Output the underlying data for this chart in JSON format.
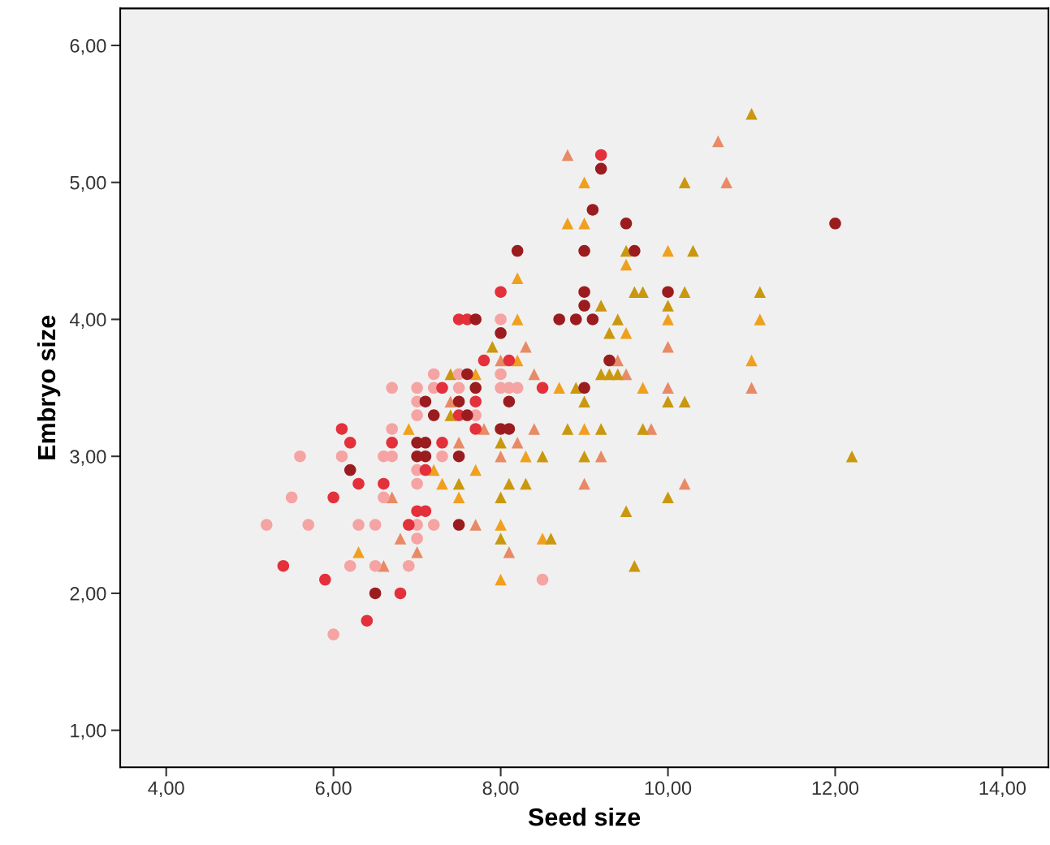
{
  "chart_data": {
    "type": "scatter",
    "xlabel": "Seed size",
    "ylabel": "Embryo size",
    "xlim": [
      3.45,
      14.55
    ],
    "ylim": [
      0.73,
      6.27
    ],
    "xticks": [
      {
        "value": 4,
        "label": "4,00"
      },
      {
        "value": 6,
        "label": "6,00"
      },
      {
        "value": 8,
        "label": "8,00"
      },
      {
        "value": 10,
        "label": "10,00"
      },
      {
        "value": 12,
        "label": "12,00"
      },
      {
        "value": 14,
        "label": "14,00"
      }
    ],
    "yticks": [
      {
        "value": 1,
        "label": "1,00"
      },
      {
        "value": 2,
        "label": "2,00"
      },
      {
        "value": 3,
        "label": "3,00"
      },
      {
        "value": 4,
        "label": "4,00"
      },
      {
        "value": 5,
        "label": "5,00"
      },
      {
        "value": 6,
        "label": "6,00"
      }
    ],
    "series": [
      {
        "color": "#e88a66",
        "marker": "triangle",
        "x": [
          8.8,
          10.6,
          10.7,
          8.3,
          10.0,
          8.0,
          9.4,
          8.4,
          9.5,
          10.0,
          11.0,
          7.4,
          7.8,
          8.4,
          9.8,
          7.5,
          8.2,
          8.0,
          9.2,
          9.0,
          10.2,
          6.7,
          7.7,
          6.8,
          7.0,
          8.1,
          6.6
        ],
        "values": [
          5.2,
          5.3,
          5.0,
          3.8,
          3.8,
          3.7,
          3.7,
          3.6,
          3.6,
          3.5,
          3.5,
          3.4,
          3.2,
          3.2,
          3.2,
          3.1,
          3.1,
          3.0,
          3.0,
          2.8,
          2.8,
          2.7,
          2.5,
          2.4,
          2.3,
          2.3,
          2.2
        ]
      },
      {
        "color": "#f0a01e",
        "marker": "triangle",
        "x": [
          9.0,
          8.8,
          9.0,
          10.0,
          9.5,
          8.2,
          8.2,
          10.0,
          11.1,
          9.5,
          8.2,
          11.0,
          7.7,
          8.7,
          9.7,
          9.0,
          6.9,
          8.3,
          7.2,
          7.7,
          7.3,
          7.5,
          8.0,
          8.5,
          6.3,
          8.0
        ],
        "values": [
          5.0,
          4.7,
          4.7,
          4.5,
          4.4,
          4.3,
          4.0,
          4.0,
          4.0,
          3.9,
          3.7,
          3.7,
          3.6,
          3.5,
          3.5,
          3.2,
          3.2,
          3.0,
          2.9,
          2.9,
          2.8,
          2.7,
          2.5,
          2.4,
          2.3,
          2.1
        ]
      },
      {
        "color": "#c9980f",
        "marker": "triangle",
        "x": [
          11.0,
          10.2,
          9.5,
          10.3,
          9.6,
          9.7,
          10.2,
          11.1,
          9.2,
          10.0,
          9.4,
          9.3,
          7.9,
          9.2,
          9.3,
          9.4,
          7.4,
          8.9,
          9.0,
          10.0,
          10.2,
          7.4,
          8.8,
          9.2,
          9.7,
          8.0,
          8.5,
          9.0,
          12.2,
          7.5,
          8.1,
          8.3,
          8.0,
          10.0,
          9.5,
          8.0,
          8.6,
          9.6
        ],
        "values": [
          5.5,
          5.0,
          4.5,
          4.5,
          4.2,
          4.2,
          4.2,
          4.2,
          4.1,
          4.1,
          4.0,
          3.9,
          3.8,
          3.6,
          3.6,
          3.6,
          3.6,
          3.5,
          3.4,
          3.4,
          3.4,
          3.3,
          3.2,
          3.2,
          3.2,
          3.1,
          3.0,
          3.0,
          3.0,
          2.8,
          2.8,
          2.8,
          2.7,
          2.7,
          2.6,
          2.4,
          2.4,
          2.2
        ]
      },
      {
        "color": "#f5a3a3",
        "marker": "circle",
        "x": [
          8.0,
          7.2,
          7.5,
          8.0,
          6.7,
          7.0,
          7.2,
          7.5,
          8.0,
          8.1,
          8.2,
          7.0,
          7.0,
          7.7,
          6.7,
          5.6,
          6.1,
          6.6,
          6.7,
          7.3,
          7.0,
          7.0,
          5.5,
          6.6,
          5.2,
          5.7,
          6.3,
          6.5,
          7.0,
          7.2,
          7.0,
          6.2,
          6.5,
          6.9,
          8.5,
          6.0
        ],
        "values": [
          4.0,
          3.6,
          3.6,
          3.6,
          3.5,
          3.5,
          3.5,
          3.5,
          3.5,
          3.5,
          3.5,
          3.4,
          3.3,
          3.3,
          3.2,
          3.0,
          3.0,
          3.0,
          3.0,
          3.0,
          2.9,
          2.8,
          2.7,
          2.7,
          2.5,
          2.5,
          2.5,
          2.5,
          2.5,
          2.5,
          2.4,
          2.2,
          2.2,
          2.2,
          2.1,
          1.7
        ]
      },
      {
        "color": "#e3303b",
        "marker": "circle",
        "x": [
          9.2,
          8.0,
          7.5,
          7.6,
          7.8,
          8.1,
          7.3,
          8.5,
          7.7,
          7.5,
          6.1,
          7.7,
          6.2,
          6.7,
          7.3,
          7.1,
          6.3,
          6.6,
          6.0,
          7.0,
          7.1,
          6.9,
          5.4,
          5.9,
          6.8,
          6.4
        ],
        "values": [
          5.2,
          4.2,
          4.0,
          4.0,
          3.7,
          3.7,
          3.5,
          3.5,
          3.4,
          3.3,
          3.2,
          3.2,
          3.1,
          3.1,
          3.1,
          2.9,
          2.8,
          2.8,
          2.7,
          2.6,
          2.6,
          2.5,
          2.2,
          2.1,
          2.0,
          1.8
        ]
      },
      {
        "color": "#9b1c1f",
        "marker": "circle",
        "x": [
          9.2,
          9.1,
          9.5,
          12.0,
          8.2,
          9.0,
          9.6,
          9.0,
          10.0,
          9.0,
          7.7,
          8.7,
          8.9,
          9.1,
          8.0,
          9.3,
          7.6,
          7.7,
          9.0,
          7.1,
          7.5,
          8.1,
          7.2,
          7.6,
          8.0,
          8.1,
          7.0,
          7.1,
          7.0,
          7.1,
          7.5,
          6.2,
          7.5,
          6.5
        ],
        "values": [
          5.1,
          4.8,
          4.7,
          4.7,
          4.5,
          4.5,
          4.5,
          4.2,
          4.2,
          4.1,
          4.0,
          4.0,
          4.0,
          4.0,
          3.9,
          3.7,
          3.6,
          3.5,
          3.5,
          3.4,
          3.4,
          3.4,
          3.3,
          3.3,
          3.2,
          3.2,
          3.1,
          3.1,
          3.0,
          3.0,
          3.0,
          2.9,
          2.5,
          2.0
        ]
      }
    ]
  }
}
